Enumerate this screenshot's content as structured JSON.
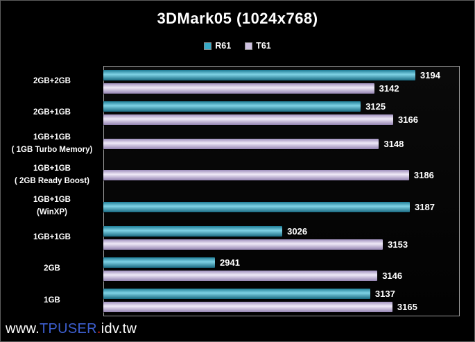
{
  "chart_data": {
    "type": "bar",
    "orientation": "horizontal",
    "title": "3DMark05 (1024x768)",
    "xlabel": "",
    "ylabel": "",
    "xlim": [
      2800,
      3250
    ],
    "grid": false,
    "legend_position": "top",
    "categories": [
      [
        "2GB+2GB"
      ],
      [
        "2GB+1GB"
      ],
      [
        "1GB+1GB",
        "( 1GB Turbo Memory)"
      ],
      [
        "1GB+1GB",
        "( 2GB Ready Boost)"
      ],
      [
        "1GB+1GB",
        "(WinXP)"
      ],
      [
        "1GB+1GB"
      ],
      [
        "2GB"
      ],
      [
        "1GB"
      ]
    ],
    "series": [
      {
        "name": "R61",
        "color": "#36a9c6",
        "gradient": [
          "#207e98",
          "#7fd2e5",
          "#1a6a81"
        ],
        "values": [
          3194,
          3125,
          null,
          null,
          3187,
          3026,
          2941,
          3137
        ]
      },
      {
        "name": "T61",
        "color": "#cec1e0",
        "gradient": [
          "#9f90bd",
          "#efe9f7",
          "#9484b2"
        ],
        "values": [
          3142,
          3166,
          3148,
          3186,
          null,
          3153,
          3146,
          3165
        ]
      }
    ]
  },
  "watermark": {
    "segments": [
      {
        "text": "www.",
        "color": "#ffffff"
      },
      {
        "text": "TPUSER",
        "color": "#3d5fd0"
      },
      {
        "text": ".",
        "color": "#cc2222"
      },
      {
        "text": "idv.tw",
        "color": "#ffffff"
      }
    ]
  }
}
